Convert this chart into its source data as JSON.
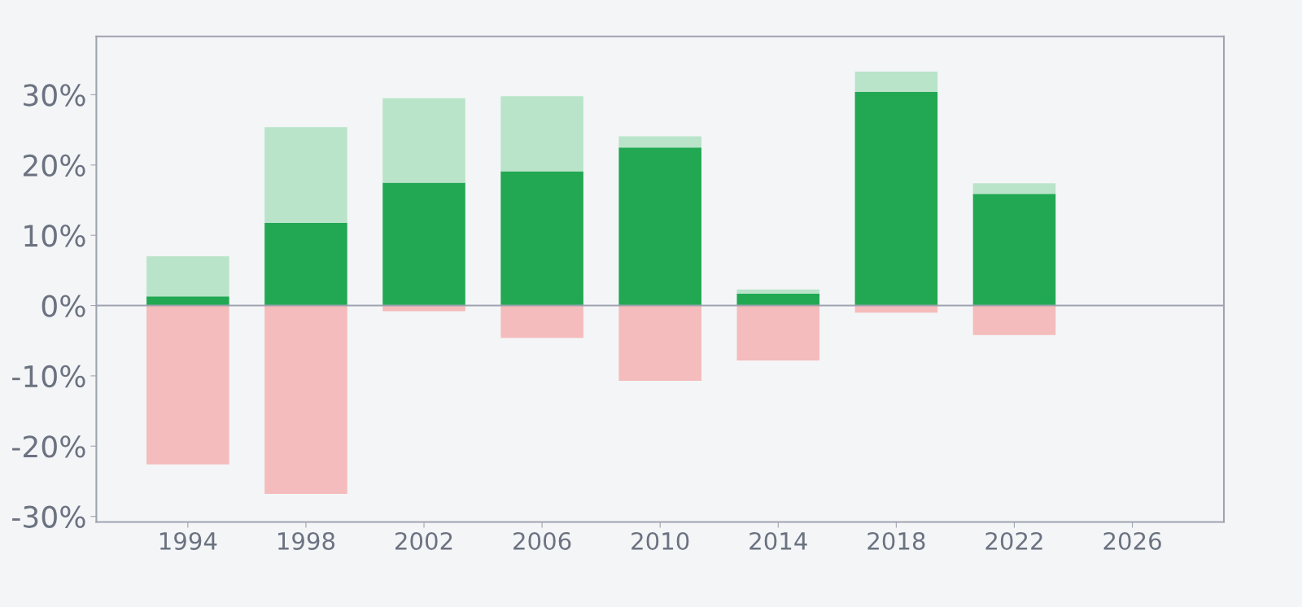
{
  "chart_data": {
    "type": "bar",
    "stacked": true,
    "x": [
      1994,
      1998,
      2002,
      2006,
      2010,
      2014,
      2018,
      2022
    ],
    "series": [
      {
        "color": "#22a853",
        "values": [
          1.3,
          11.8,
          17.5,
          19.1,
          22.5,
          1.7,
          30.4,
          15.9
        ]
      },
      {
        "color": "#b9e4c9",
        "values": [
          5.7,
          13.6,
          12.0,
          10.7,
          1.6,
          0.6,
          2.9,
          1.5
        ]
      },
      {
        "color": "#f4bcbc",
        "values": [
          -22.6,
          -26.8,
          -0.8,
          -4.6,
          -10.7,
          -7.8,
          -1.0,
          -4.2
        ]
      }
    ],
    "xlim": [
      1990.9,
      2029.1
    ],
    "xticks": [
      1994,
      1998,
      2002,
      2006,
      2010,
      2014,
      2018,
      2022,
      2026
    ],
    "ylim": [
      -30.8,
      38.3
    ],
    "yticks": [
      {
        "value": -30,
        "label": "-30%"
      },
      {
        "value": -20,
        "label": "-20%"
      },
      {
        "value": -10,
        "label": "-10%"
      },
      {
        "value": 0,
        "label": "0%"
      },
      {
        "value": 10,
        "label": "10%"
      },
      {
        "value": 20,
        "label": "20%"
      },
      {
        "value": 30,
        "label": "30%"
      }
    ],
    "ref_lines": [
      {
        "axis": "y",
        "value": 0,
        "color": "#9ea3b0"
      }
    ],
    "grid": false,
    "legend": false
  }
}
